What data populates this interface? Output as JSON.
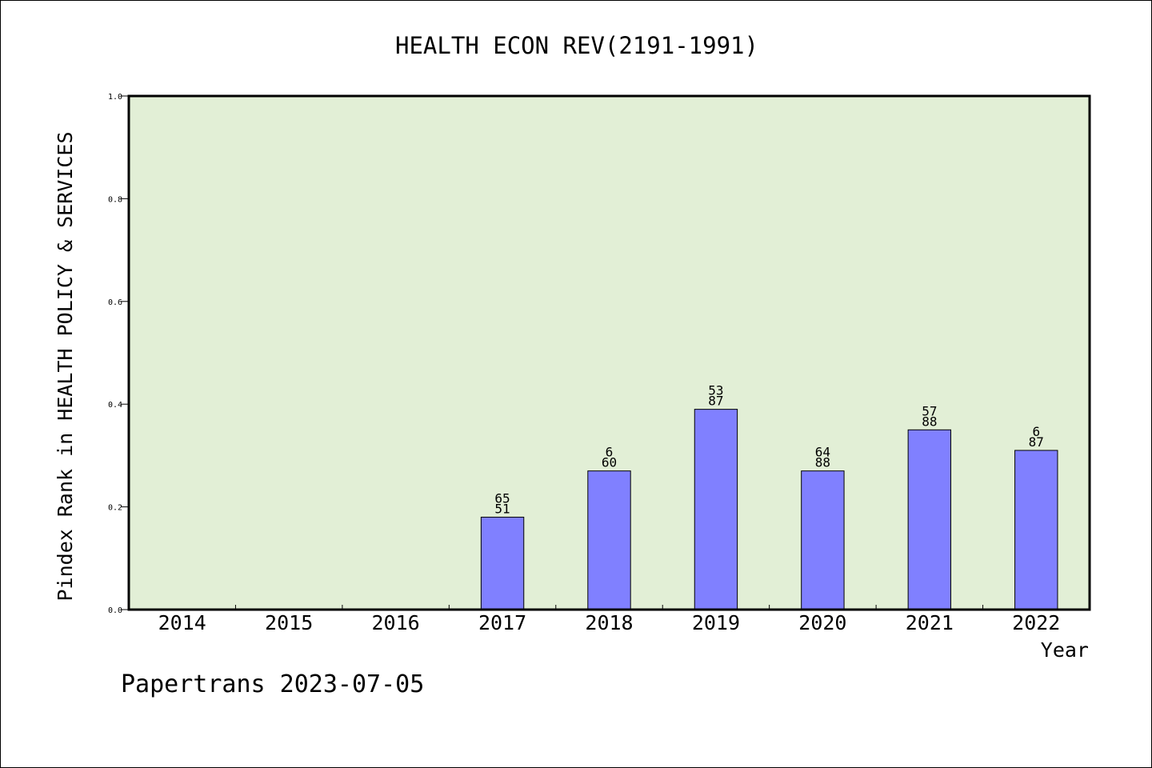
{
  "footer": {
    "label": "Papertrans 2023-07-05"
  },
  "chart_data": {
    "type": "bar",
    "title": "HEALTH ECON REV(2191-1991)",
    "xlabel": "Year",
    "ylabel": "Pindex Rank in HEALTH POLICY & SERVICES",
    "categories": [
      "2014",
      "2015",
      "2016",
      "2017",
      "2018",
      "2019",
      "2020",
      "2021",
      "2022"
    ],
    "values": [
      null,
      null,
      null,
      0.18,
      0.27,
      0.39,
      0.27,
      0.35,
      0.31
    ],
    "bar_labels": [
      null,
      null,
      null,
      [
        "65",
        "51"
      ],
      [
        "6",
        "60"
      ],
      [
        "53",
        "87"
      ],
      [
        "64",
        "88"
      ],
      [
        "57",
        "88"
      ],
      [
        "6",
        "87"
      ]
    ],
    "ylim": [
      0,
      1.0
    ],
    "yticks": [
      "0.0",
      "0.2",
      "0.4",
      "0.6",
      "0.8",
      "1.0"
    ],
    "grid": false,
    "colors": {
      "plot_background": "#e2efd6",
      "bar": "#8080ff",
      "axis": "#000000"
    }
  }
}
